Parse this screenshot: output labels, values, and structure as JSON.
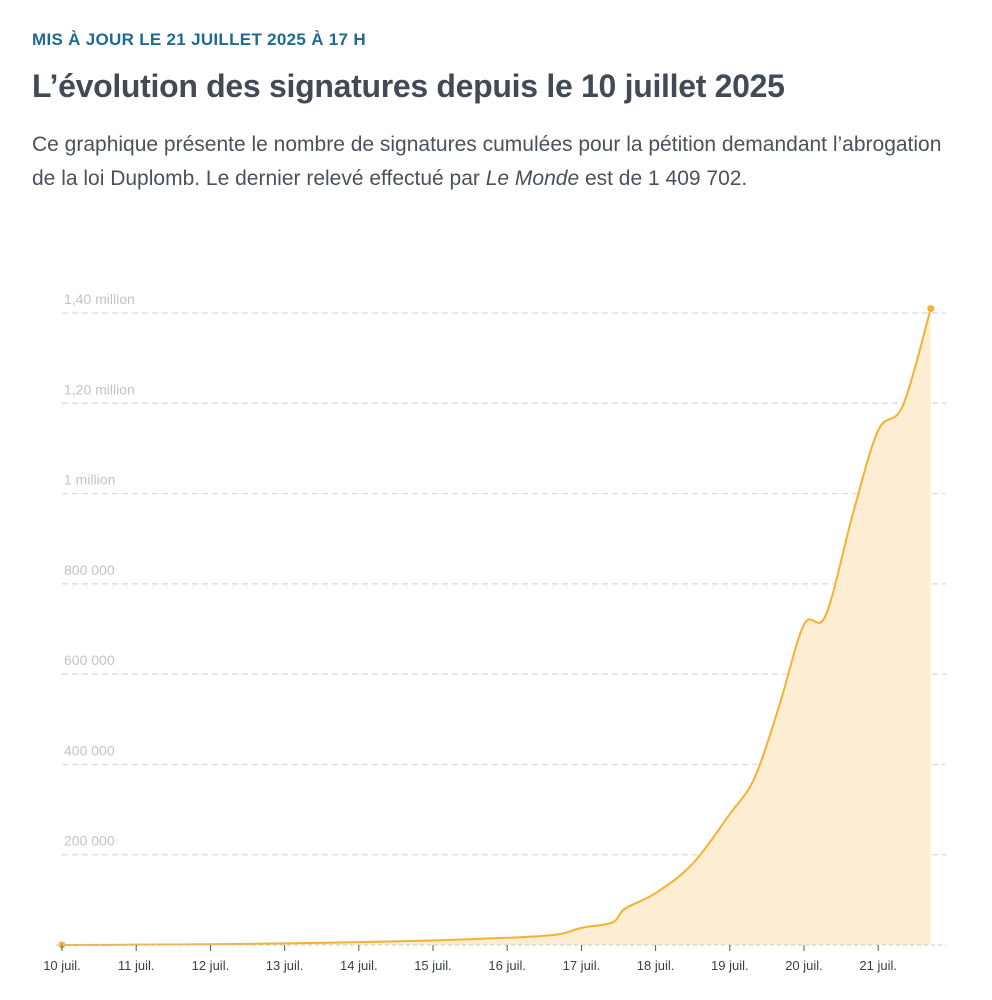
{
  "header": {
    "kicker": "MIS À JOUR LE 21 JUILLET 2025 À 17 H",
    "title": "L’évolution des signatures depuis le 10 juillet 2025",
    "description_before": "Ce graphique présente le nombre de signatures cumulées pour la pétition demandant l’abrogation de la loi Duplomb. Le dernier relevé effectué par ",
    "description_em": "Le Monde",
    "description_after": " est de 1 409 702."
  },
  "colors": {
    "line": "#f5b230",
    "area": "#fdeed3",
    "grid": "#d9d9d9",
    "kicker": "#1d6b91",
    "title": "#424a56"
  },
  "chart_data": {
    "type": "area",
    "ylim": [
      0,
      1400000
    ],
    "xlim": [
      "2025-07-10",
      "2025-07-21T17:00"
    ],
    "grid": true,
    "y_ticks": [
      {
        "value": 1400000,
        "label": "1,40 million"
      },
      {
        "value": 1200000,
        "label": "1,20 million"
      },
      {
        "value": 1000000,
        "label": "1 million"
      },
      {
        "value": 800000,
        "label": "800 000"
      },
      {
        "value": 600000,
        "label": "600 000"
      },
      {
        "value": 400000,
        "label": "400 000"
      },
      {
        "value": 200000,
        "label": "200 000"
      }
    ],
    "x_ticks": [
      {
        "value": "2025-07-10",
        "label": "10 juil."
      },
      {
        "value": "2025-07-11",
        "label": "11 juil."
      },
      {
        "value": "2025-07-12",
        "label": "12 juil."
      },
      {
        "value": "2025-07-13",
        "label": "13 juil."
      },
      {
        "value": "2025-07-14",
        "label": "14 juil."
      },
      {
        "value": "2025-07-15",
        "label": "15 juil."
      },
      {
        "value": "2025-07-16",
        "label": "16 juil."
      },
      {
        "value": "2025-07-17",
        "label": "17 juil."
      },
      {
        "value": "2025-07-18",
        "label": "18 juil."
      },
      {
        "value": "2025-07-19",
        "label": "19 juil."
      },
      {
        "value": "2025-07-20",
        "label": "20 juil."
      },
      {
        "value": "2025-07-21",
        "label": "21 juil."
      }
    ],
    "series": [
      {
        "points": [
          [
            "2025-07-10T00:00",
            0
          ],
          [
            "2025-07-11T00:00",
            700
          ],
          [
            "2025-07-12T00:00",
            1800
          ],
          [
            "2025-07-13T00:00",
            3500
          ],
          [
            "2025-07-14T00:00",
            6500
          ],
          [
            "2025-07-15T00:00",
            10000
          ],
          [
            "2025-07-16T00:00",
            16000
          ],
          [
            "2025-07-16T16:00",
            23000
          ],
          [
            "2025-07-17T00:00",
            38000
          ],
          [
            "2025-07-17T10:00",
            50000
          ],
          [
            "2025-07-17T14:00",
            80000
          ],
          [
            "2025-07-18T00:00",
            115000
          ],
          [
            "2025-07-18T12:00",
            180000
          ],
          [
            "2025-07-19T00:00",
            290000
          ],
          [
            "2025-07-19T08:00",
            370000
          ],
          [
            "2025-07-19T16:00",
            530000
          ],
          [
            "2025-07-20T00:00",
            710000
          ],
          [
            "2025-07-20T07:00",
            730000
          ],
          [
            "2025-07-20T16:00",
            960000
          ],
          [
            "2025-07-21T00:00",
            1140000
          ],
          [
            "2025-07-21T08:00",
            1195000
          ],
          [
            "2025-07-21T17:00",
            1409702
          ]
        ]
      }
    ]
  }
}
